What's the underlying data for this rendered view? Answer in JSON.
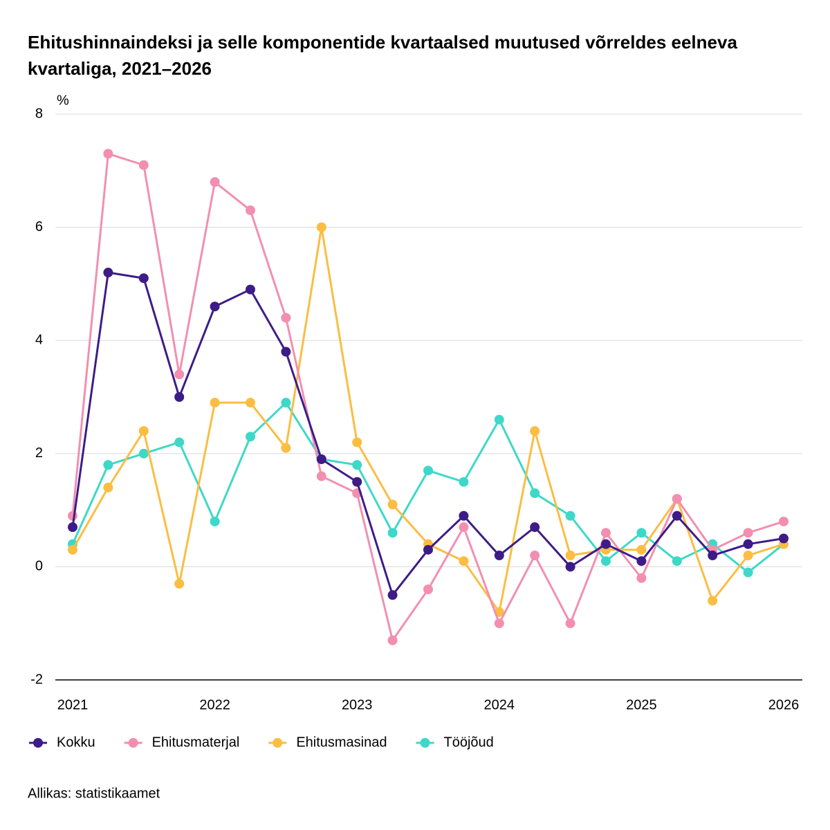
{
  "chart_data": {
    "type": "line",
    "title": "Ehitushinnaindeksi ja selle komponentide kvartaalsed muutused võrreldes eelneva kvartaliga, 2021–2026",
    "y_label": "%",
    "source": "Allikas: statistikaamet",
    "categories": [
      "2021",
      null,
      null,
      null,
      "2022",
      null,
      null,
      null,
      "2023",
      null,
      null,
      null,
      "2024",
      null,
      null,
      null,
      "2025",
      null,
      null,
      null,
      "2026"
    ],
    "series": [
      {
        "name": "Kokku",
        "color": "#3d1c87",
        "values": [
          0.7,
          5.2,
          5.1,
          3.0,
          4.6,
          4.9,
          3.8,
          1.9,
          1.5,
          -0.5,
          0.3,
          0.9,
          0.2,
          0.7,
          0.0,
          0.4,
          0.1,
          0.9,
          0.2,
          0.4,
          0.5
        ]
      },
      {
        "name": "Ehitusmaterjal",
        "color": "#f28fb1",
        "values": [
          0.9,
          7.3,
          7.1,
          3.4,
          6.8,
          6.3,
          4.4,
          1.6,
          1.3,
          -1.3,
          -0.4,
          0.7,
          -1.0,
          0.2,
          -1.0,
          0.6,
          -0.2,
          1.2,
          0.3,
          0.6,
          0.8
        ]
      },
      {
        "name": "Ehitusmasinad",
        "color": "#fbbd42",
        "values": [
          0.3,
          1.4,
          2.4,
          -0.3,
          2.9,
          2.9,
          2.1,
          6.0,
          2.2,
          1.1,
          0.4,
          0.1,
          -0.8,
          2.4,
          0.2,
          0.3,
          0.3,
          1.2,
          -0.6,
          0.2,
          0.4
        ]
      },
      {
        "name": "Tööjõud",
        "color": "#3ed8c9",
        "values": [
          0.4,
          1.8,
          2.0,
          2.2,
          0.8,
          2.3,
          2.9,
          1.9,
          1.8,
          0.6,
          1.7,
          1.5,
          2.6,
          1.3,
          0.9,
          0.1,
          0.6,
          0.1,
          0.4,
          -0.1,
          0.4
        ]
      }
    ],
    "ylim": [
      -2,
      8
    ],
    "yticks": [
      -2,
      0,
      2,
      4,
      6,
      8
    ],
    "grid": true
  }
}
